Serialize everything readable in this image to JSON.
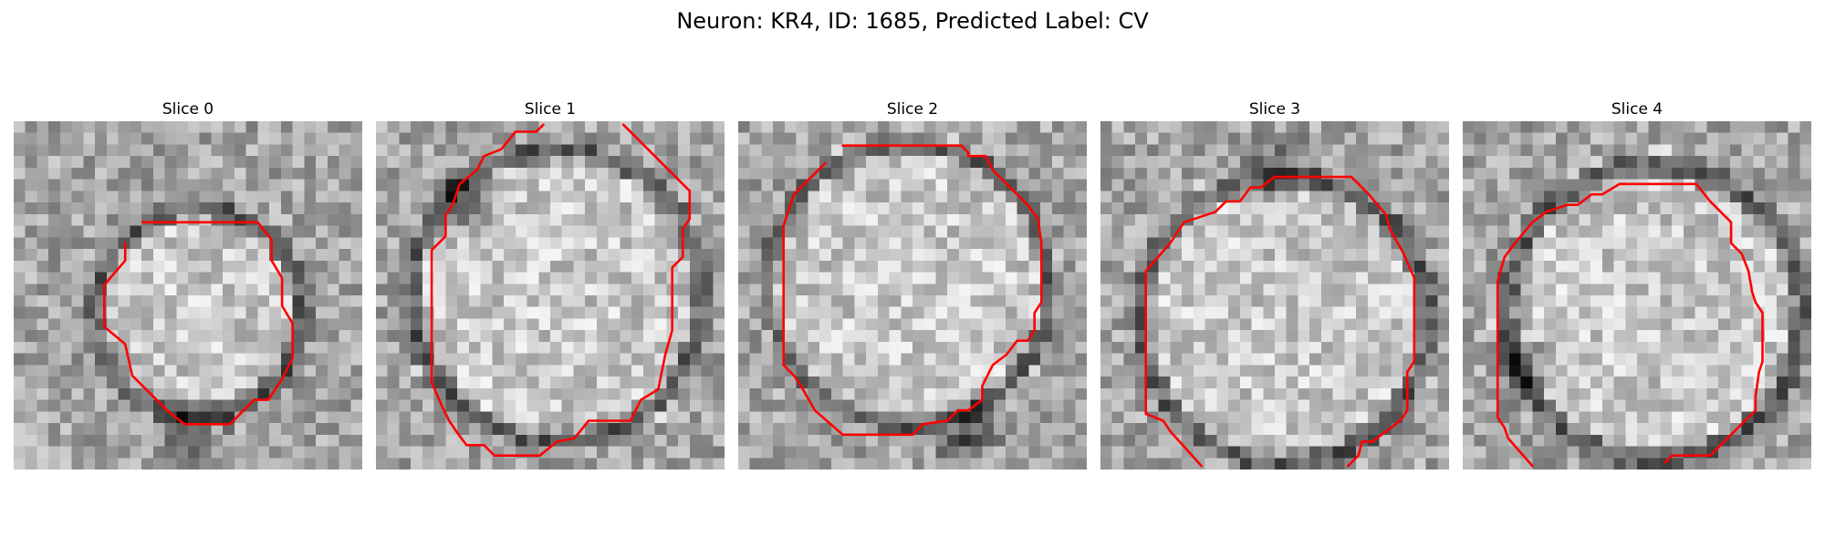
{
  "figure": {
    "title": "Neuron: KR4, ID: 1685, Predicted Label: CV"
  },
  "style": {
    "contour_color": "#ff0000",
    "background": "#ffffff"
  },
  "panels": [
    {
      "title": "Slice 0",
      "inner_radius": 0.26,
      "inner_center": [
        0.53,
        0.55
      ],
      "membrane_radius": 0.34,
      "dark_spot": [
        0.52,
        0.88
      ],
      "contour": [
        [
          0.37,
          0.29
        ],
        [
          0.7,
          0.29
        ],
        [
          0.74,
          0.34
        ],
        [
          0.74,
          0.4
        ],
        [
          0.77,
          0.45
        ],
        [
          0.77,
          0.53
        ],
        [
          0.8,
          0.58
        ],
        [
          0.8,
          0.68
        ],
        [
          0.77,
          0.74
        ],
        [
          0.73,
          0.8
        ],
        [
          0.69,
          0.8
        ],
        [
          0.62,
          0.87
        ],
        [
          0.49,
          0.87
        ],
        [
          0.44,
          0.83
        ],
        [
          0.34,
          0.73
        ],
        [
          0.32,
          0.64
        ],
        [
          0.26,
          0.59
        ],
        [
          0.26,
          0.47
        ],
        [
          0.32,
          0.4
        ],
        [
          0.32,
          0.35
        ]
      ]
    },
    {
      "title": "Slice 1",
      "inner_radius": 0.38,
      "inner_center": [
        0.52,
        0.5
      ],
      "membrane_radius": 0.46,
      "dark_spot": [
        0.25,
        0.23
      ],
      "contour": [
        [
          0.48,
          0.01
        ],
        [
          0.46,
          0.03
        ],
        [
          0.4,
          0.03
        ],
        [
          0.36,
          0.08
        ],
        [
          0.31,
          0.1
        ],
        [
          0.29,
          0.14
        ],
        [
          0.24,
          0.18
        ],
        [
          0.22,
          0.24
        ],
        [
          0.2,
          0.27
        ],
        [
          0.2,
          0.33
        ],
        [
          0.16,
          0.37
        ],
        [
          0.16,
          0.75
        ],
        [
          0.19,
          0.82
        ],
        [
          0.21,
          0.86
        ],
        [
          0.23,
          0.89
        ],
        [
          0.26,
          0.93
        ],
        [
          0.31,
          0.93
        ],
        [
          0.34,
          0.96
        ],
        [
          0.47,
          0.96
        ],
        [
          0.52,
          0.92
        ],
        [
          0.57,
          0.91
        ],
        [
          0.61,
          0.86
        ],
        [
          0.73,
          0.86
        ],
        [
          0.76,
          0.8
        ],
        [
          0.81,
          0.77
        ],
        [
          0.83,
          0.67
        ],
        [
          0.85,
          0.6
        ],
        [
          0.85,
          0.42
        ],
        [
          0.88,
          0.39
        ],
        [
          0.88,
          0.31
        ],
        [
          0.9,
          0.28
        ],
        [
          0.9,
          0.2
        ],
        [
          0.71,
          0.01
        ]
      ]
    },
    {
      "title": "Slice 2",
      "inner_radius": 0.37,
      "inner_center": [
        0.49,
        0.47
      ],
      "membrane_radius": 0.44,
      "dark_spot": [
        0.65,
        0.9
      ],
      "contour": [
        [
          0.3,
          0.07
        ],
        [
          0.64,
          0.07
        ],
        [
          0.66,
          0.09
        ],
        [
          0.66,
          0.1
        ],
        [
          0.71,
          0.1
        ],
        [
          0.73,
          0.14
        ],
        [
          0.79,
          0.2
        ],
        [
          0.83,
          0.24
        ],
        [
          0.86,
          0.28
        ],
        [
          0.87,
          0.35
        ],
        [
          0.87,
          0.52
        ],
        [
          0.85,
          0.55
        ],
        [
          0.85,
          0.6
        ],
        [
          0.83,
          0.63
        ],
        [
          0.8,
          0.63
        ],
        [
          0.77,
          0.67
        ],
        [
          0.73,
          0.7
        ],
        [
          0.7,
          0.76
        ],
        [
          0.7,
          0.8
        ],
        [
          0.66,
          0.83
        ],
        [
          0.63,
          0.83
        ],
        [
          0.6,
          0.86
        ],
        [
          0.53,
          0.87
        ],
        [
          0.5,
          0.9
        ],
        [
          0.3,
          0.9
        ],
        [
          0.22,
          0.83
        ],
        [
          0.18,
          0.76
        ],
        [
          0.16,
          0.73
        ],
        [
          0.13,
          0.7
        ],
        [
          0.13,
          0.3
        ],
        [
          0.16,
          0.21
        ],
        [
          0.21,
          0.16
        ],
        [
          0.25,
          0.12
        ]
      ]
    },
    {
      "title": "Slice 3",
      "inner_radius": 0.37,
      "inner_center": [
        0.53,
        0.57
      ],
      "membrane_radius": 0.46,
      "dark_spot": [
        0.52,
        0.13
      ],
      "contour": [
        [
          0.29,
          0.99
        ],
        [
          0.2,
          0.89
        ],
        [
          0.18,
          0.86
        ],
        [
          0.13,
          0.84
        ],
        [
          0.13,
          0.43
        ],
        [
          0.2,
          0.35
        ],
        [
          0.24,
          0.29
        ],
        [
          0.33,
          0.26
        ],
        [
          0.36,
          0.23
        ],
        [
          0.4,
          0.23
        ],
        [
          0.43,
          0.19
        ],
        [
          0.46,
          0.19
        ],
        [
          0.5,
          0.16
        ],
        [
          0.72,
          0.16
        ],
        [
          0.77,
          0.21
        ],
        [
          0.82,
          0.27
        ],
        [
          0.83,
          0.31
        ],
        [
          0.87,
          0.38
        ],
        [
          0.9,
          0.45
        ],
        [
          0.9,
          0.69
        ],
        [
          0.88,
          0.72
        ],
        [
          0.88,
          0.83
        ],
        [
          0.86,
          0.86
        ],
        [
          0.82,
          0.89
        ],
        [
          0.78,
          0.92
        ],
        [
          0.75,
          0.92
        ],
        [
          0.74,
          0.96
        ],
        [
          0.71,
          0.99
        ]
      ]
    },
    {
      "title": "Slice 4",
      "inner_radius": 0.38,
      "inner_center": [
        0.55,
        0.55
      ],
      "membrane_radius": 0.47,
      "dark_spot": [
        0.18,
        0.72
      ],
      "contour": [
        [
          0.2,
          0.99
        ],
        [
          0.13,
          0.91
        ],
        [
          0.12,
          0.88
        ],
        [
          0.1,
          0.85
        ],
        [
          0.1,
          0.46
        ],
        [
          0.12,
          0.39
        ],
        [
          0.15,
          0.35
        ],
        [
          0.2,
          0.29
        ],
        [
          0.24,
          0.26
        ],
        [
          0.3,
          0.24
        ],
        [
          0.33,
          0.24
        ],
        [
          0.37,
          0.21
        ],
        [
          0.4,
          0.21
        ],
        [
          0.45,
          0.18
        ],
        [
          0.67,
          0.18
        ],
        [
          0.71,
          0.23
        ],
        [
          0.77,
          0.29
        ],
        [
          0.77,
          0.35
        ],
        [
          0.8,
          0.38
        ],
        [
          0.82,
          0.43
        ],
        [
          0.83,
          0.49
        ],
        [
          0.84,
          0.52
        ],
        [
          0.86,
          0.55
        ],
        [
          0.86,
          0.69
        ],
        [
          0.85,
          0.72
        ],
        [
          0.84,
          0.79
        ],
        [
          0.84,
          0.83
        ],
        [
          0.81,
          0.86
        ],
        [
          0.76,
          0.91
        ],
        [
          0.74,
          0.93
        ],
        [
          0.71,
          0.96
        ],
        [
          0.6,
          0.96
        ],
        [
          0.58,
          0.98
        ]
      ]
    }
  ]
}
